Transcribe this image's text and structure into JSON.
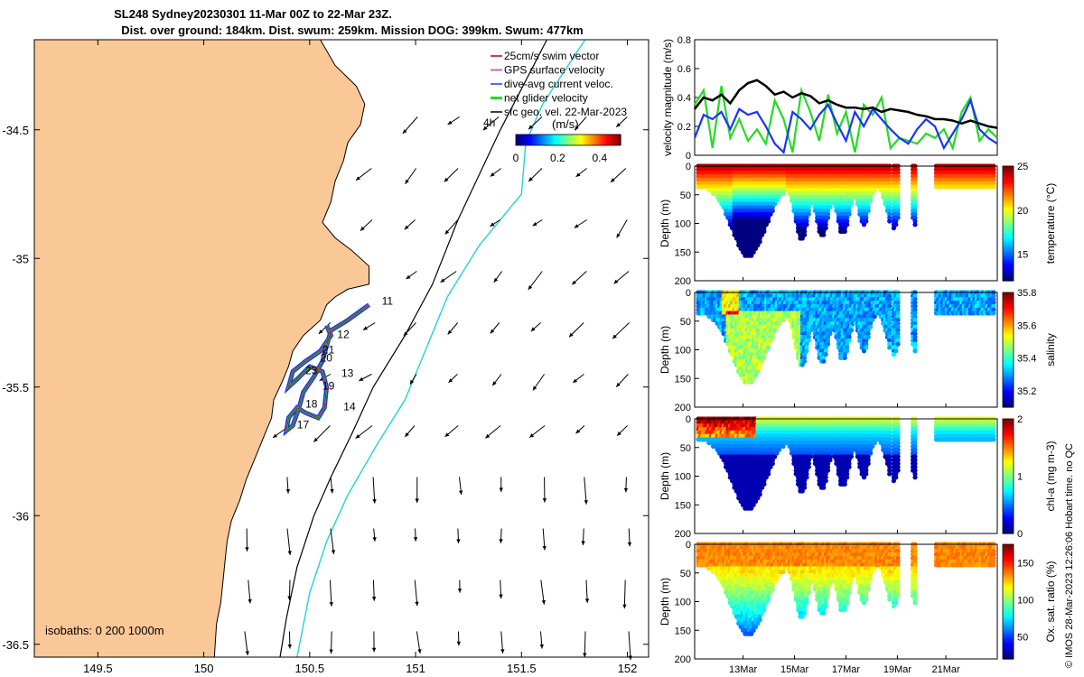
{
  "chart_data": [
    {
      "type": "map",
      "title_line1": "SL248 Sydney20230301 11-Mar 00Z to 22-Mar 23Z.",
      "title_line2": "Dist. over ground: 184km. Dist. swum: 259km. Mission DOG: 399km. Swum: 477km",
      "xlim": [
        149.2,
        152.1
      ],
      "ylim": [
        -36.55,
        -34.15
      ],
      "xticks": [
        "149.5",
        "150",
        "150.5",
        "151",
        "151.5",
        "152"
      ],
      "xtick_values": [
        149.5,
        150,
        150.5,
        151,
        151.5,
        152
      ],
      "yticks": [
        "-34.5",
        "-35",
        "-35.5",
        "-36",
        "-36.5"
      ],
      "ytick_values": [
        -34.5,
        -35,
        -35.5,
        -36,
        -36.5
      ],
      "legend": [
        "25cm/s swim vector",
        "GPS surface velocity",
        "dive-avg current veloc.",
        "net glider velocity",
        "sfc geo. vel. 22-Mar-2023"
      ],
      "legend_colors": [
        "#cc0000",
        "#cc33cc",
        "#1a33ff",
        "#22dd22",
        "#000000"
      ],
      "colorbar_label": "(m/s)",
      "colorbar_ticks": [
        "0",
        "0.2",
        "0.4"
      ],
      "time_marker": "4h",
      "day_labels": [
        "11",
        "12",
        "13",
        "14",
        "17",
        "18",
        "19",
        "20",
        "21",
        "23"
      ],
      "isobath_text": "isobaths: 0   200  1000m",
      "coast_color": "#fac896",
      "isobath_1000_color": "#22d3d8"
    },
    {
      "type": "line",
      "ylabel": "velocity magnitude (m/s)",
      "ylim": [
        0,
        0.8
      ],
      "yticks": [
        "0",
        "0.2",
        "0.4",
        "0.6",
        "0.8"
      ],
      "series": [
        {
          "name": "sfc geo. vel.",
          "color": "#000000",
          "values": [
            0.32,
            0.4,
            0.38,
            0.42,
            0.36,
            0.45,
            0.5,
            0.52,
            0.48,
            0.42,
            0.44,
            0.4,
            0.43,
            0.41,
            0.36,
            0.38,
            0.35,
            0.33,
            0.33,
            0.32,
            0.33,
            0.3,
            0.32,
            0.31,
            0.3,
            0.28,
            0.27,
            0.25,
            0.25,
            0.24,
            0.22,
            0.24,
            0.22,
            0.2,
            0.19
          ]
        },
        {
          "name": "dive-avg current",
          "color": "#1a33ff",
          "values": [
            0.12,
            0.28,
            0.25,
            0.3,
            0.18,
            0.32,
            0.28,
            0.3,
            0.2,
            0.08,
            0.02,
            0.3,
            0.25,
            0.18,
            0.28,
            0.35,
            0.22,
            0.1,
            0.3,
            0.2,
            0.32,
            0.25,
            0.18,
            0.12,
            0.08,
            0.18,
            0.25,
            0.2,
            0.05,
            0.15,
            0.25,
            0.38,
            0.18,
            0.12,
            0.08
          ]
        },
        {
          "name": "net glider velocity",
          "color": "#22dd22",
          "values": [
            0.35,
            0.45,
            0.05,
            0.48,
            0.12,
            0.25,
            0.1,
            0.18,
            0.08,
            0.38,
            0.25,
            0.02,
            0.45,
            0.3,
            0.1,
            0.42,
            0.15,
            0.3,
            0.02,
            0.35,
            0.28,
            0.4,
            0.05,
            0.12,
            0.1,
            0.08,
            0.15,
            0.12,
            0.18,
            0.05,
            0.3,
            0.4,
            0.1,
            0.18,
            0.12
          ]
        }
      ]
    },
    {
      "type": "heatmap",
      "ylabel": "Depth (m)",
      "ylim": [
        200,
        0
      ],
      "yticks": [
        "0",
        "50",
        "100",
        "150",
        "200"
      ],
      "colorbar_label": "temperature (°C)",
      "colorbar_ticks": [
        "15",
        "20",
        "25"
      ],
      "range": [
        12,
        25
      ]
    },
    {
      "type": "heatmap",
      "ylabel": "Depth (m)",
      "ylim": [
        200,
        0
      ],
      "yticks": [
        "0",
        "50",
        "100",
        "150",
        "200"
      ],
      "colorbar_label": "salinity",
      "colorbar_ticks": [
        "35.2",
        "35.4",
        "35.6",
        "35.8"
      ],
      "range": [
        35.1,
        35.8
      ]
    },
    {
      "type": "heatmap",
      "ylabel": "Depth (m)",
      "ylim": [
        200,
        0
      ],
      "yticks": [
        "0",
        "50",
        "100",
        "150",
        "200"
      ],
      "colorbar_label": "chl-a (mg m-3)",
      "colorbar_ticks": [
        "0",
        "1",
        "2"
      ],
      "range": [
        0,
        2
      ]
    },
    {
      "type": "heatmap",
      "ylabel": "Depth (m)",
      "ylim": [
        200,
        0
      ],
      "yticks": [
        "0",
        "50",
        "100",
        "150",
        "200"
      ],
      "colorbar_label": "Ox. sat. ratio (%)",
      "colorbar_ticks": [
        "50",
        "100",
        "150"
      ],
      "range": [
        20,
        175
      ],
      "xticks": [
        "13Mar",
        "15Mar",
        "17Mar",
        "19Mar",
        "21Mar"
      ]
    }
  ],
  "credit": "© IMOS 28-Mar-2023 12:26:06 Hobart time. no QC"
}
